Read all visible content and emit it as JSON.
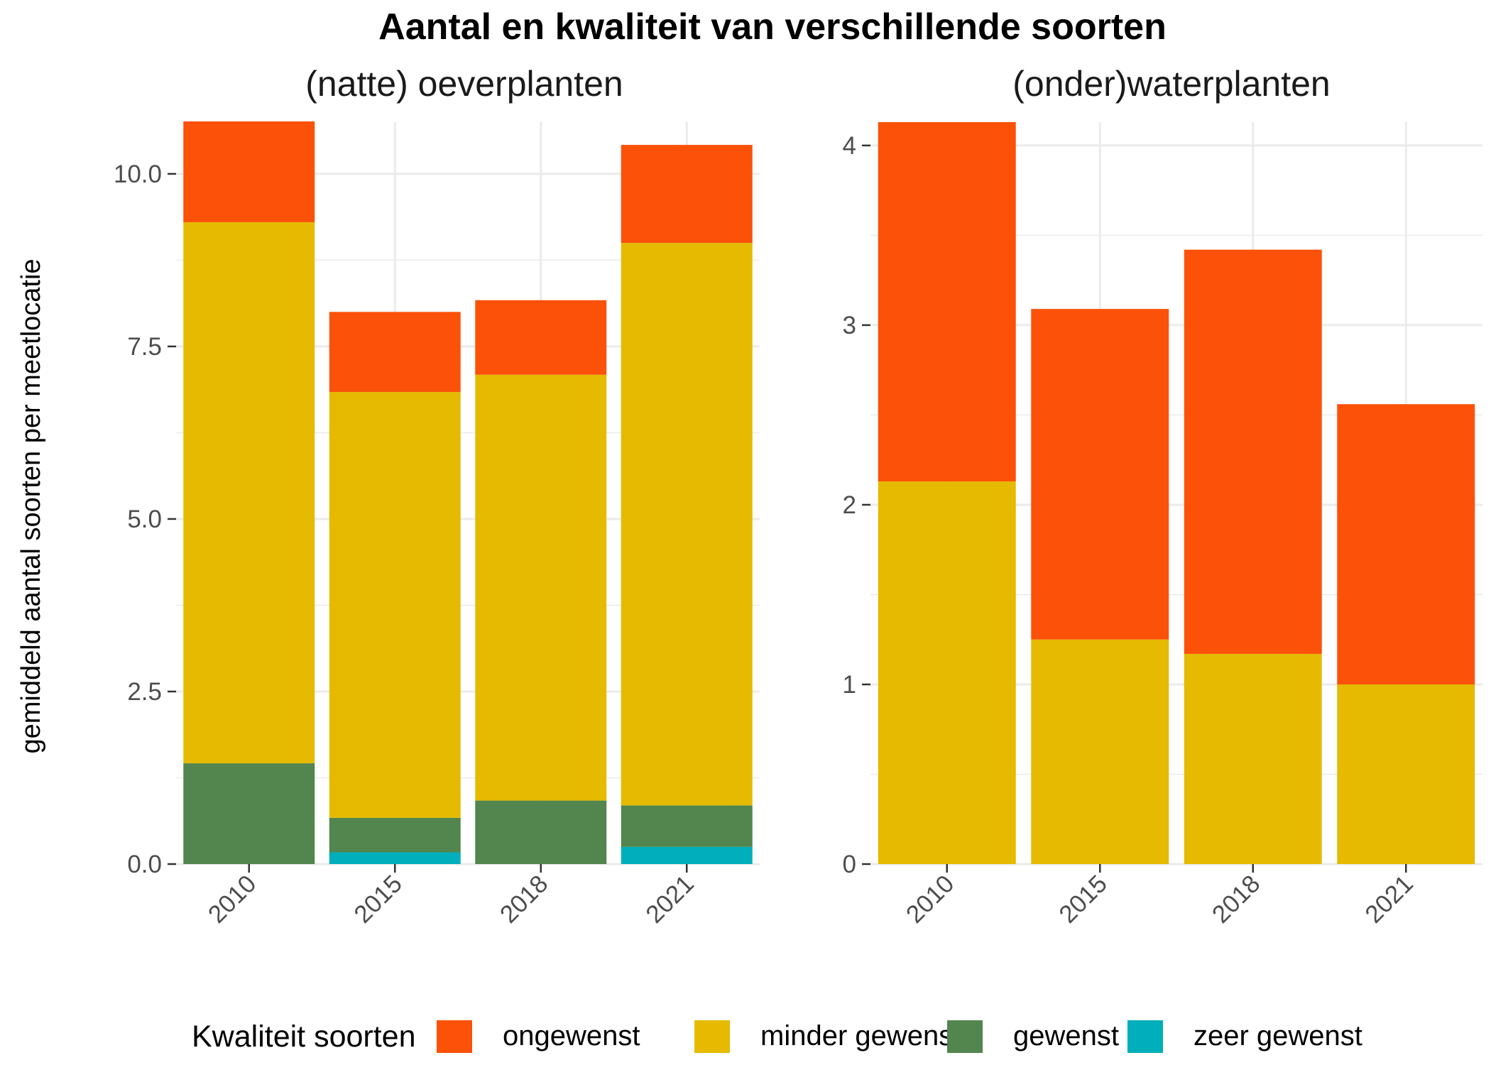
{
  "chart_data": {
    "title": "Aantal en kwaliteit van verschillende soorten",
    "ylabel": "gemiddeld aantal soorten per meetlocatie",
    "legend": {
      "title": "Kwaliteit soorten",
      "placement": "bottom",
      "entries": [
        {
          "label": "ongewenst",
          "color": "#FC5109"
        },
        {
          "label": "minder gewenst",
          "color": "#E5BA00"
        },
        {
          "label": "gewenst",
          "color": "#53854E"
        },
        {
          "label": "zeer gewenst",
          "color": "#00AFBB"
        }
      ]
    },
    "panels": [
      {
        "type": "bar",
        "stacked": true,
        "title": "(natte) oeverplanten",
        "categories": [
          "2010",
          "2015",
          "2018",
          "2021"
        ],
        "ylim": [
          0,
          10.75
        ],
        "yticks": [
          0,
          2.5,
          5,
          7.5,
          10
        ],
        "ytick_labels": [
          "0.0",
          "2.5",
          "5.0",
          "7.5",
          "10.0"
        ],
        "grid": true,
        "series": [
          {
            "name": "zeer gewenst",
            "values": [
              0,
              0.17,
              0,
              0.25
            ]
          },
          {
            "name": "gewenst",
            "values": [
              1.46,
              0.5,
              0.92,
              0.6
            ]
          },
          {
            "name": "minder gewenst",
            "values": [
              7.84,
              6.17,
              6.17,
              8.15
            ]
          },
          {
            "name": "ongewenst",
            "values": [
              1.46,
              1.16,
              1.08,
              1.42
            ]
          }
        ]
      },
      {
        "type": "bar",
        "stacked": true,
        "title": "(onder)waterplanten",
        "categories": [
          "2010",
          "2015",
          "2018",
          "2021"
        ],
        "ylim": [
          0,
          4.13
        ],
        "yticks": [
          0,
          1,
          2,
          3,
          4
        ],
        "ytick_labels": [
          "0",
          "1",
          "2",
          "3",
          "4"
        ],
        "grid": true,
        "series": [
          {
            "name": "zeer gewenst",
            "values": [
              0,
              0,
              0,
              0
            ]
          },
          {
            "name": "gewenst",
            "values": [
              0,
              0,
              0,
              0
            ]
          },
          {
            "name": "minder gewenst",
            "values": [
              2.13,
              1.25,
              1.17,
              1.0
            ]
          },
          {
            "name": "ongewenst",
            "values": [
              2.0,
              1.84,
              2.25,
              1.56
            ]
          }
        ]
      }
    ]
  }
}
